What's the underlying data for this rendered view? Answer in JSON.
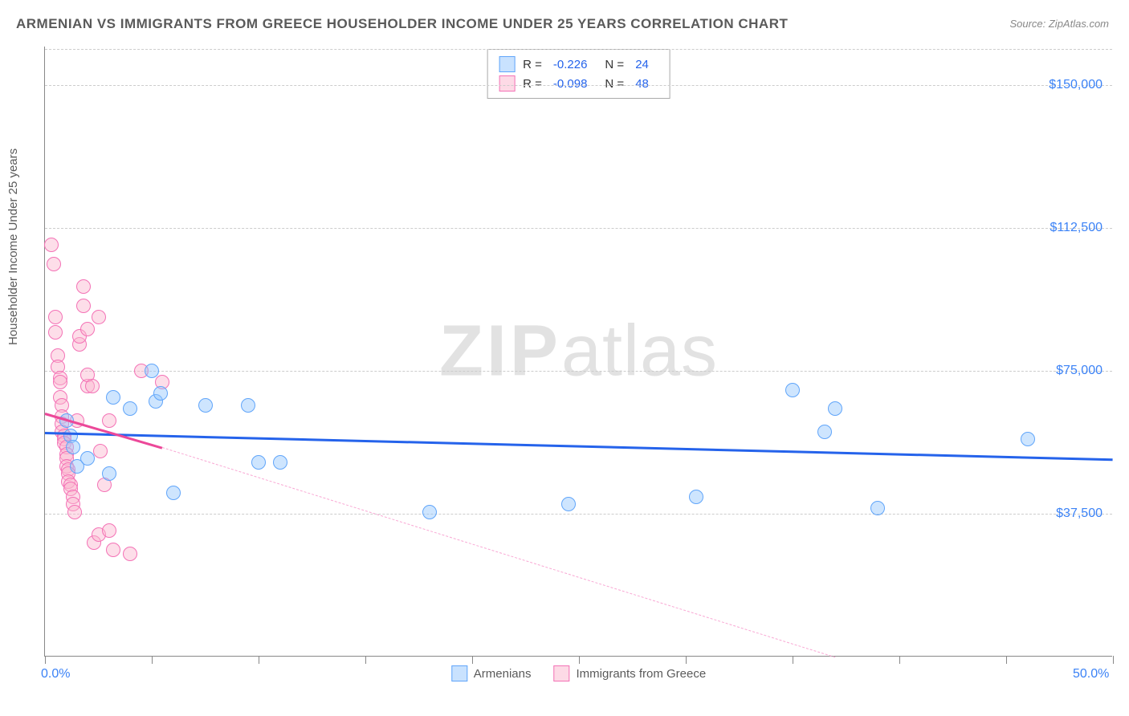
{
  "title": "ARMENIAN VS IMMIGRANTS FROM GREECE HOUSEHOLDER INCOME UNDER 25 YEARS CORRELATION CHART",
  "source": "Source: ZipAtlas.com",
  "ylabel": "Householder Income Under 25 years",
  "watermark_bold": "ZIP",
  "watermark_light": "atlas",
  "chart": {
    "type": "scatter",
    "xlim": [
      0,
      50
    ],
    "ylim": [
      0,
      160000
    ],
    "xticks_pct": [
      0,
      5,
      10,
      15,
      20,
      25,
      30,
      35,
      40,
      45,
      50
    ],
    "xlabels": {
      "0": "0.0%",
      "50": "50.0%"
    },
    "yticks": [
      37500,
      75000,
      112500,
      150000
    ],
    "ylabels": {
      "37500": "$37,500",
      "75000": "$75,000",
      "112500": "$112,500",
      "150000": "$150,000"
    },
    "grid_color": "#cccccc",
    "axis_color": "#888888",
    "background_color": "#ffffff",
    "title_color": "#5a5a5a",
    "title_fontsize": 17,
    "label_fontsize": 15,
    "tick_fontsize": 16,
    "tick_color": "#3b82f6",
    "watermark_color": "#cccccc",
    "series": [
      {
        "name": "Armenians",
        "color_fill": "rgba(147,197,253,0.45)",
        "color_stroke": "#60a5fa",
        "trend_color": "#2563eb",
        "trend_width": 3,
        "R": "-0.226",
        "N": "24",
        "trend": {
          "x1": 0,
          "y1": 59000,
          "x2": 50,
          "y2": 52000
        },
        "points": [
          [
            1.0,
            62000
          ],
          [
            1.2,
            58000
          ],
          [
            1.3,
            55000
          ],
          [
            1.5,
            50000
          ],
          [
            2.0,
            52000
          ],
          [
            3.0,
            48000
          ],
          [
            3.2,
            68000
          ],
          [
            4.0,
            65000
          ],
          [
            5.0,
            75000
          ],
          [
            5.2,
            67000
          ],
          [
            5.4,
            69000
          ],
          [
            6.0,
            43000
          ],
          [
            7.5,
            66000
          ],
          [
            9.5,
            66000
          ],
          [
            10.0,
            51000
          ],
          [
            11.0,
            51000
          ],
          [
            18.0,
            38000
          ],
          [
            24.5,
            40000
          ],
          [
            30.5,
            42000
          ],
          [
            35.0,
            70000
          ],
          [
            36.5,
            59000
          ],
          [
            37.0,
            65000
          ],
          [
            39.0,
            39000
          ],
          [
            46.0,
            57000
          ]
        ]
      },
      {
        "name": "Immigrants from Greece",
        "color_fill": "rgba(251,182,206,0.45)",
        "color_stroke": "#f472b6",
        "trend_color": "#ec4899",
        "trend_width": 3,
        "R": "-0.098",
        "N": "48",
        "trend_solid": {
          "x1": 0,
          "y1": 64000,
          "x2": 5.5,
          "y2": 55000
        },
        "trend_dash": {
          "x1": 5.5,
          "y1": 55000,
          "x2": 37,
          "y2": 0
        },
        "points": [
          [
            0.3,
            108000
          ],
          [
            0.4,
            103000
          ],
          [
            0.5,
            89000
          ],
          [
            0.5,
            85000
          ],
          [
            0.6,
            79000
          ],
          [
            0.6,
            76000
          ],
          [
            0.7,
            73000
          ],
          [
            0.7,
            72000
          ],
          [
            0.7,
            68000
          ],
          [
            0.8,
            66000
          ],
          [
            0.8,
            63000
          ],
          [
            0.8,
            61000
          ],
          [
            0.8,
            59000
          ],
          [
            0.9,
            58000
          ],
          [
            0.9,
            57000
          ],
          [
            0.9,
            56000
          ],
          [
            1.0,
            55000
          ],
          [
            1.0,
            53000
          ],
          [
            1.0,
            52000
          ],
          [
            1.0,
            50000
          ],
          [
            1.1,
            49000
          ],
          [
            1.1,
            48000
          ],
          [
            1.1,
            46000
          ],
          [
            1.2,
            45000
          ],
          [
            1.2,
            44000
          ],
          [
            1.3,
            42000
          ],
          [
            1.3,
            40000
          ],
          [
            1.4,
            38000
          ],
          [
            1.5,
            62000
          ],
          [
            1.6,
            82000
          ],
          [
            1.6,
            84000
          ],
          [
            1.8,
            92000
          ],
          [
            1.8,
            97000
          ],
          [
            2.0,
            71000
          ],
          [
            2.0,
            86000
          ],
          [
            2.0,
            74000
          ],
          [
            2.2,
            71000
          ],
          [
            2.3,
            30000
          ],
          [
            2.5,
            32000
          ],
          [
            2.5,
            89000
          ],
          [
            2.6,
            54000
          ],
          [
            2.8,
            45000
          ],
          [
            3.0,
            62000
          ],
          [
            3.0,
            33000
          ],
          [
            3.2,
            28000
          ],
          [
            4.0,
            27000
          ],
          [
            4.5,
            75000
          ],
          [
            5.5,
            72000
          ]
        ]
      }
    ]
  },
  "stats_box": {
    "rows": [
      {
        "swatch": "blue",
        "R_label": "R =",
        "R_val": "-0.226",
        "N_label": "N =",
        "N_val": "24"
      },
      {
        "swatch": "pink",
        "R_label": "R =",
        "R_val": "-0.098",
        "N_label": "N =",
        "N_val": "48"
      }
    ]
  },
  "legend": {
    "items": [
      {
        "swatch": "blue",
        "label": "Armenians"
      },
      {
        "swatch": "pink",
        "label": "Immigrants from Greece"
      }
    ]
  }
}
